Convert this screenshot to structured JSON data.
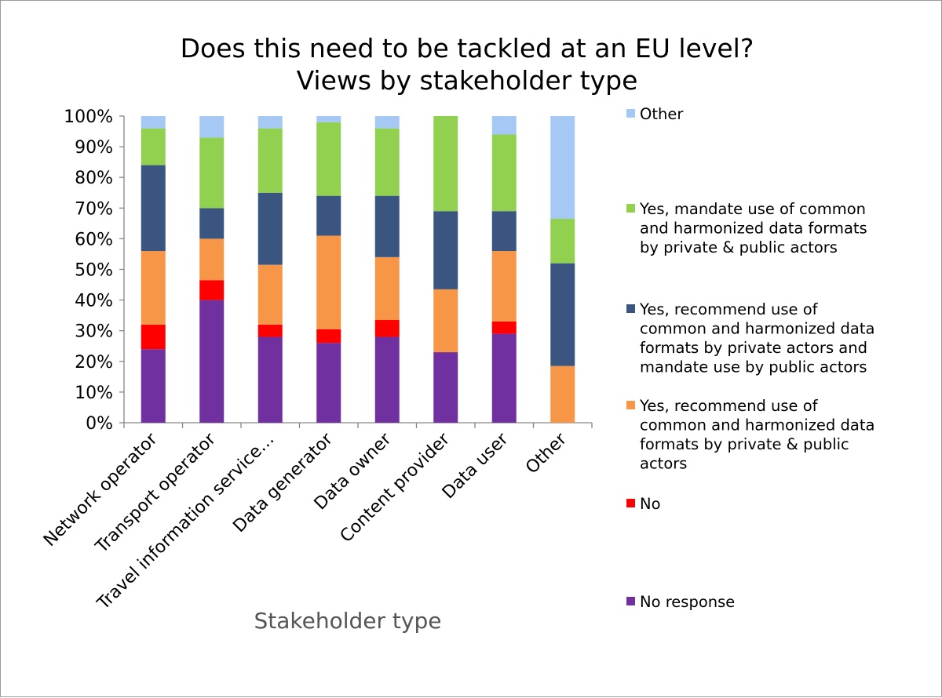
{
  "chart_data": {
    "type": "bar",
    "stacked": true,
    "percent_stacked": true,
    "title": "Does this need to be tackled at an EU level? Views by stakeholder type",
    "title_lines": [
      "Does this need to be tackled at an EU level?",
      "Views by stakeholder type"
    ],
    "xlabel": "Stakeholder type",
    "ylabel": "",
    "ylim": [
      0,
      100
    ],
    "y_ticks": [
      "0%",
      "10%",
      "20%",
      "30%",
      "40%",
      "50%",
      "60%",
      "70%",
      "80%",
      "90%",
      "100%"
    ],
    "grid": false,
    "legend_position": "right",
    "categories": [
      "Network operator",
      "Transport operator",
      "Travel information service…",
      "Data generator",
      "Data owner",
      "Content provider",
      "Data user",
      "Other"
    ],
    "series": [
      {
        "name": "No response",
        "color": "#7030a0",
        "values": [
          24,
          40,
          28,
          26,
          28,
          23,
          29,
          0
        ]
      },
      {
        "name": "No",
        "color": "#ff0000",
        "values": [
          8,
          6.5,
          4,
          4.5,
          5.5,
          0,
          4,
          0
        ]
      },
      {
        "name": "Yes, recommend use of common and harmonized data formats by private & public actors",
        "color": "#f79646",
        "values": [
          24,
          13.5,
          19.5,
          30.5,
          20.5,
          20.5,
          23,
          18.5
        ]
      },
      {
        "name": "Yes, recommend use of common and harmonized data formats by private actors and mandate use by public actors",
        "color": "#3a5680",
        "values": [
          28,
          10,
          23.5,
          13,
          20,
          25.5,
          13,
          33.5
        ]
      },
      {
        "name": "Yes, mandate use of common and harmonized data formats by private & public actors",
        "color": "#92d050",
        "values": [
          12,
          23,
          21,
          24,
          22,
          31,
          25,
          14.5
        ]
      },
      {
        "name": "Other",
        "color": "#a6c8f4",
        "values": [
          4,
          7,
          4,
          2,
          4,
          0,
          6,
          33.5
        ]
      }
    ],
    "legend": [
      {
        "name": "Other",
        "color": "#a6c8f4",
        "lines": [
          "Other"
        ]
      },
      {
        "name": "Yes, mandate use of common and harmonized data formats by private & public actors",
        "color": "#92d050",
        "lines": [
          "Yes, mandate use of common",
          "and harmonized data formats",
          "by private & public actors"
        ]
      },
      {
        "name": "Yes, recommend use of common and harmonized data formats by private actors and mandate use by public actors",
        "color": "#3a5680",
        "lines": [
          "Yes, recommend use of",
          "common and harmonized data",
          "formats by private actors and",
          "mandate use by public actors"
        ]
      },
      {
        "name": "Yes, recommend use of common and harmonized data formats by private & public actors",
        "color": "#f79646",
        "lines": [
          "Yes, recommend use of",
          "common and harmonized data",
          "formats by private & public",
          "actors"
        ]
      },
      {
        "name": "No",
        "color": "#ff0000",
        "lines": [
          "No"
        ]
      },
      {
        "name": "No response",
        "color": "#7030a0",
        "lines": [
          "No response"
        ]
      }
    ]
  }
}
